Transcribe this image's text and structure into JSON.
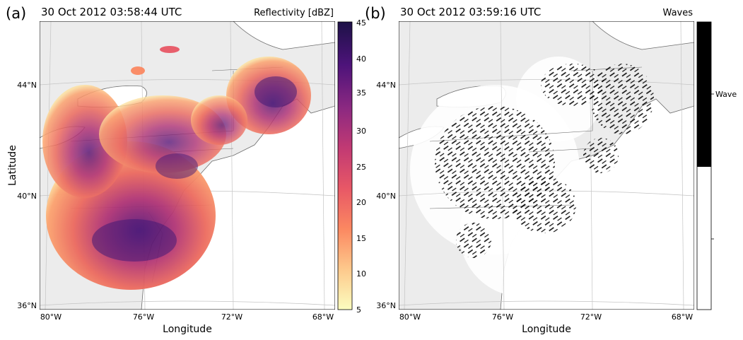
{
  "panel_a": {
    "label": "(a)",
    "timestamp": "30 Oct 2012 03:58:44 UTC",
    "product": "Reflectivity [dBZ]",
    "lat_ticks": [
      "44°N",
      "40°N",
      "36°N"
    ],
    "lon_ticks": [
      "80°W",
      "76°W",
      "72°W",
      "68°W"
    ],
    "ylabel": "Latitude",
    "xlabel": "Longitude",
    "colorbar": {
      "ticks": [
        "45",
        "40",
        "35",
        "30",
        "25",
        "20",
        "15",
        "10",
        "5"
      ],
      "colormap": [
        "#fcfdbf",
        "#fdb07a",
        "#f8795b",
        "#e7416b",
        "#b5367a",
        "#812481",
        "#51127c",
        "#1d1147"
      ]
    }
  },
  "panel_b": {
    "label": "(b)",
    "timestamp": "30 Oct 2012 03:59:16 UTC",
    "product": "Waves",
    "lat_ticks": [
      "44°N",
      "40°N",
      "36°N"
    ],
    "lon_ticks": [
      "80°W",
      "76°W",
      "72°W",
      "68°W"
    ],
    "xlabel": "Longitude",
    "colorbar": {
      "label": "Wave",
      "colors": [
        "#000000",
        "#ffffff"
      ]
    }
  },
  "colors": {
    "land": "#ececec",
    "water": "#ffffff",
    "coast": "#6d6d6d",
    "grid": "#c4c4c4"
  }
}
